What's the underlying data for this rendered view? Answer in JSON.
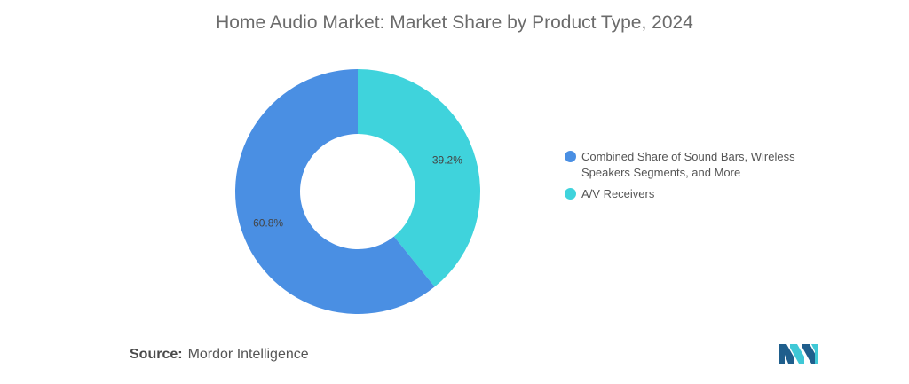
{
  "chart_data": {
    "type": "pie",
    "title": "Home Audio Market: Market Share by Product Type, 2024",
    "donut": true,
    "legend_position": "right",
    "slices": [
      {
        "label": "A/V Receivers",
        "value": 39.2,
        "display": "39.2%",
        "color": "#3fd3dc"
      },
      {
        "label": "Combined Share of Sound Bars, Wireless Speakers Segments, and More",
        "value": 60.8,
        "display": "60.8%",
        "color": "#4a8fe3"
      }
    ]
  },
  "legend": {
    "items": [
      {
        "label": "Combined Share of Sound Bars, Wireless Speakers Segments, and More",
        "color": "#4a8fe3"
      },
      {
        "label": "A/V Receivers",
        "color": "#3fd3dc"
      }
    ]
  },
  "source": {
    "label": "Source:",
    "text": "Mordor Intelligence"
  },
  "logo": {
    "icon": "mordor-intelligence-logo",
    "colors": [
      "#1f5e8c",
      "#3fc8d6"
    ]
  }
}
